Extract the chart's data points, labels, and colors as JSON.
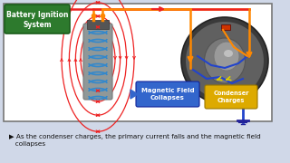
{
  "bg_color": "#d0d8e8",
  "main_bg": "#ffffff",
  "title_box_color": "#2d7a2d",
  "title_text": "Battery Ignition\nSystem",
  "title_text_color": "#ffffff",
  "label_magnetic": "Magnetic Field\nCollapses",
  "label_condenser": "Condenser\nCharges",
  "label_magnetic_color": "#3366cc",
  "label_condenser_color": "#ddaa00",
  "caption": "▶ As the condenser charges, the primary current falls and the magnetic field\n   collapses",
  "caption_color": "#111111",
  "coil_body_color": "#909898",
  "coil_wire_color": "#3388cc",
  "red_color": "#ee2222",
  "orange_color": "#ff8800",
  "blue_color": "#2244cc",
  "yellow_color": "#ddcc00",
  "dark_cap_color": "#555555",
  "border_color": "#888888",
  "circle_outer": "#444444",
  "circle_inner": "#787878",
  "circle_rotor": "#909090"
}
